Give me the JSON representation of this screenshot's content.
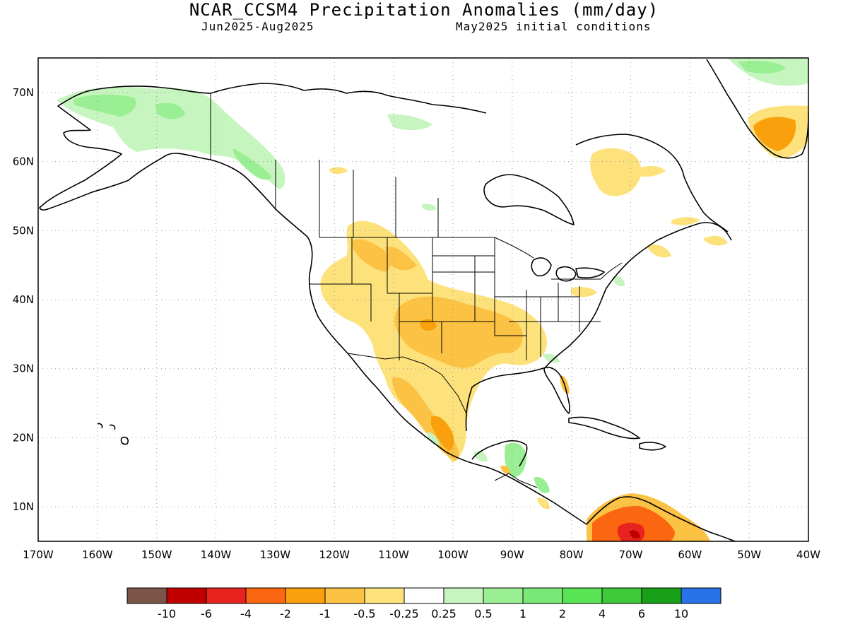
{
  "header": {
    "title": "NCAR_CCSM4 Precipitation Anomalies (mm/day)",
    "period": "Jun2025-Aug2025",
    "init": "May2025 initial conditions"
  },
  "map": {
    "lon_range": [
      -170,
      -40
    ],
    "lat_range": [
      5,
      75
    ],
    "lat_labels": [
      "10N",
      "20N",
      "30N",
      "40N",
      "50N",
      "60N",
      "70N"
    ],
    "lon_labels": [
      "170W",
      "160W",
      "150W",
      "140W",
      "130W",
      "120W",
      "110W",
      "100W",
      "90W",
      "80W",
      "70W",
      "60W",
      "50W",
      "40W"
    ],
    "grid": "dotted"
  },
  "colorbar": {
    "colors": [
      "#7a5548",
      "#c00000",
      "#e8231f",
      "#fb6610",
      "#f9a00c",
      "#fbc243",
      "#fde27c",
      "#ffffff",
      "#c7f5bf",
      "#9aee93",
      "#7ae877",
      "#58e455",
      "#3dc93a",
      "#18a018",
      "#2a72e8"
    ],
    "labels": [
      "-10",
      "-6",
      "-4",
      "-2",
      "-1",
      "-0.5",
      "-0.25",
      "0.25",
      "0.5",
      "1",
      "2",
      "4",
      "6",
      "10"
    ]
  },
  "anomalies": [
    {
      "region": "Alaska",
      "level": 0.5
    },
    {
      "region": "Yukon",
      "level": 0.5
    },
    {
      "region": "Greenland-north",
      "level": 0.5
    },
    {
      "region": "Greenland-south",
      "level": -1
    },
    {
      "region": "Quebec",
      "level": -0.25
    },
    {
      "region": "US-West",
      "level": -0.5
    },
    {
      "region": "US-SouthernPlains",
      "level": -1
    },
    {
      "region": "Mexico-West",
      "level": -1
    },
    {
      "region": "Colombia-Venezuela",
      "level": -2
    },
    {
      "region": "Florida",
      "level": 0.25
    },
    {
      "region": "Central-America",
      "level": 0.5
    }
  ]
}
